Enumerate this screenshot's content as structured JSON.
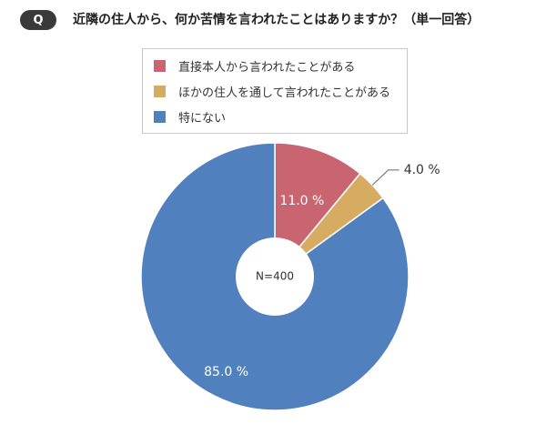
{
  "header": {
    "badge": "Q",
    "question": "近隣の住人から、何か苦情を言われたことはありますか？（単一回答）"
  },
  "chart_data": {
    "type": "pie",
    "title": "",
    "center_label": "N=400",
    "legend_position": "top",
    "slices": [
      {
        "name": "直接本人から言われたことがある",
        "value": 11.0,
        "label": "11.0 %",
        "color": "#c86570"
      },
      {
        "name": "ほかの住人を通して言われたことがある",
        "value": 4.0,
        "label": "4.0 %",
        "color": "#d6ac63"
      },
      {
        "name": "特にない",
        "value": 85.0,
        "label": "85.0 %",
        "color": "#5080bd"
      }
    ]
  }
}
